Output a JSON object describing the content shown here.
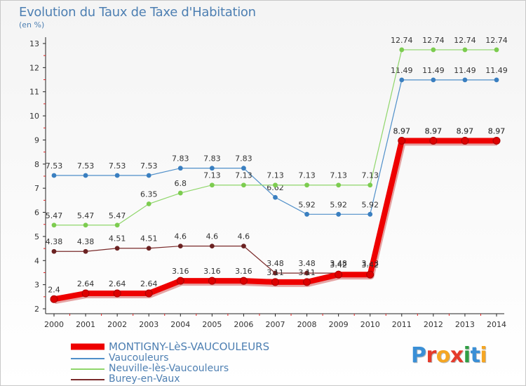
{
  "title": "Evolution du Taux de Taxe d'Habitation",
  "unit": "(en %)",
  "logo": {
    "chars": [
      "P",
      "r",
      "o",
      "x",
      "i",
      "t",
      "i"
    ],
    "colors": [
      "#3a8fd6",
      "#e53b2c",
      "#f5a623",
      "#e53b2c",
      "#2f9e44",
      "#3a8fd6",
      "#f5a623"
    ]
  },
  "chart_data": {
    "type": "line",
    "x": [
      "2000",
      "2001",
      "2002",
      "2003",
      "2004",
      "2005",
      "2006",
      "2007",
      "2008",
      "2009",
      "2010",
      "2011",
      "2012",
      "2013",
      "2014"
    ],
    "ylim": [
      2,
      13
    ],
    "yticks": [
      "2",
      "3",
      "4",
      "5",
      "6",
      "7",
      "8",
      "9",
      "10",
      "11",
      "12",
      "13"
    ],
    "grid": false,
    "legend_position": "bottom-left",
    "series": [
      {
        "name": "Vaucouleurs",
        "color": "#4f8fc9",
        "dot": "#3a7fc0",
        "values": [
          7.53,
          7.53,
          7.53,
          7.53,
          7.83,
          7.83,
          7.83,
          6.62,
          5.92,
          5.92,
          5.92,
          11.49,
          11.49,
          11.49,
          11.49
        ],
        "labels": [
          "7.53",
          "7.53",
          "7.53",
          "7.53",
          "7.83",
          "7.83",
          "7.83",
          "6.62",
          "5.92",
          "5.92",
          "5.92",
          "11.49",
          "11.49",
          "11.49",
          "11.49"
        ]
      },
      {
        "name": "Neuville-lès-Vaucouleurs",
        "color": "#8fd66a",
        "dot": "#7ccc4f",
        "values": [
          5.47,
          5.47,
          5.47,
          6.35,
          6.8,
          7.13,
          7.13,
          7.13,
          7.13,
          7.13,
          7.13,
          12.74,
          12.74,
          12.74,
          12.74
        ],
        "labels": [
          "5.47",
          "5.47",
          "5.47",
          "6.35",
          "6.8",
          "7.13",
          "7.13",
          "7.13",
          "7.13",
          "7.13",
          "7.13",
          "12.74",
          "12.74",
          "12.74",
          "12.74"
        ]
      },
      {
        "name": "Burey-en-Vaux",
        "color": "#7a2a2a",
        "dot": "#6b2222",
        "values": [
          4.38,
          4.38,
          4.51,
          4.51,
          4.6,
          4.6,
          4.6,
          3.48,
          3.48,
          3.48,
          3.48,
          8.97,
          8.97,
          8.97,
          8.97
        ],
        "labels": [
          "4.38",
          "4.38",
          "4.51",
          "4.51",
          "4.6",
          "4.6",
          "4.6",
          "3.48",
          "3.48",
          "3.48",
          "3.48",
          "8.97",
          "8.97",
          "8.97",
          "8.97"
        ]
      },
      {
        "name": "MONTIGNY-LèS-VAUCOULEURS",
        "color": "#ee0000",
        "dot": "#dd0000",
        "values": [
          2.4,
          2.64,
          2.64,
          2.64,
          3.16,
          3.16,
          3.16,
          3.11,
          3.11,
          3.42,
          3.42,
          8.97,
          8.97,
          8.97,
          8.97
        ],
        "labels": [
          "2.4",
          "2.64",
          "2.64",
          "2.64",
          "3.16",
          "3.16",
          "3.16",
          "3.11",
          "3.11",
          "3.42",
          "3.42",
          "8.97",
          "8.97",
          "8.97",
          "8.97"
        ],
        "bold": true
      }
    ],
    "legend": [
      {
        "name": "MONTIGNY-LèS-VAUCOULEURS",
        "color": "#ee0000",
        "bold": true
      },
      {
        "name": "Vaucouleurs",
        "color": "#4f8fc9"
      },
      {
        "name": "Neuville-lès-Vaucouleurs",
        "color": "#8fd66a"
      },
      {
        "name": "Burey-en-Vaux",
        "color": "#7a2a2a"
      }
    ]
  }
}
